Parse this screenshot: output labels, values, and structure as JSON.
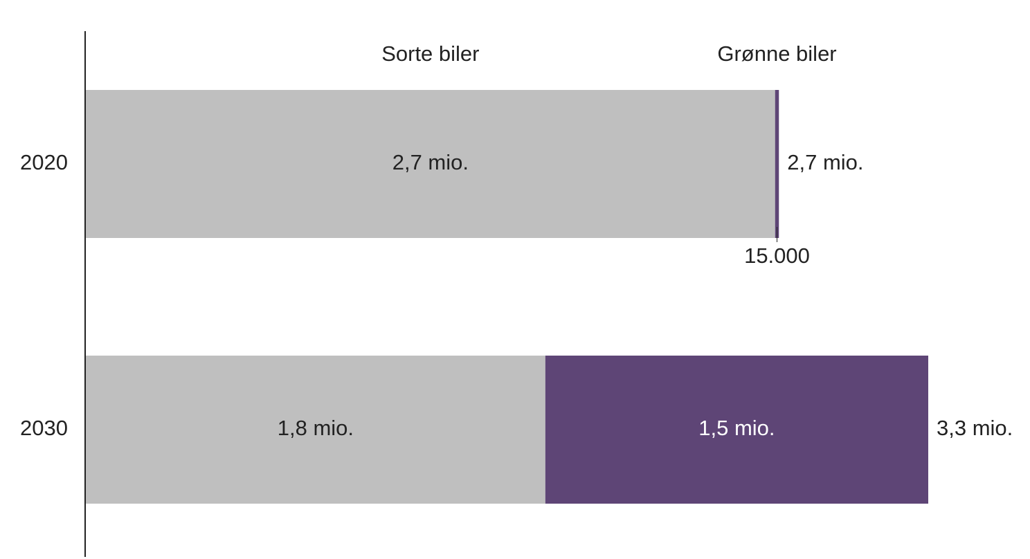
{
  "chart_data": {
    "type": "stacked-barh",
    "categories": [
      "2020",
      "2030"
    ],
    "series": [
      {
        "name": "Sorte biler",
        "color": "#bfbfbf",
        "values": [
          2700000,
          1800000
        ],
        "value_labels": [
          "2,7 mio.",
          "1,8 mio."
        ]
      },
      {
        "name": "Grønne biler",
        "color": "#5e4576",
        "values": [
          15000,
          1500000
        ],
        "value_labels": [
          "15.000",
          "1,5 mio."
        ]
      }
    ],
    "totals": [
      2715000,
      3300000
    ],
    "total_labels": [
      "2,7 mio.",
      "3,3 mio."
    ]
  }
}
